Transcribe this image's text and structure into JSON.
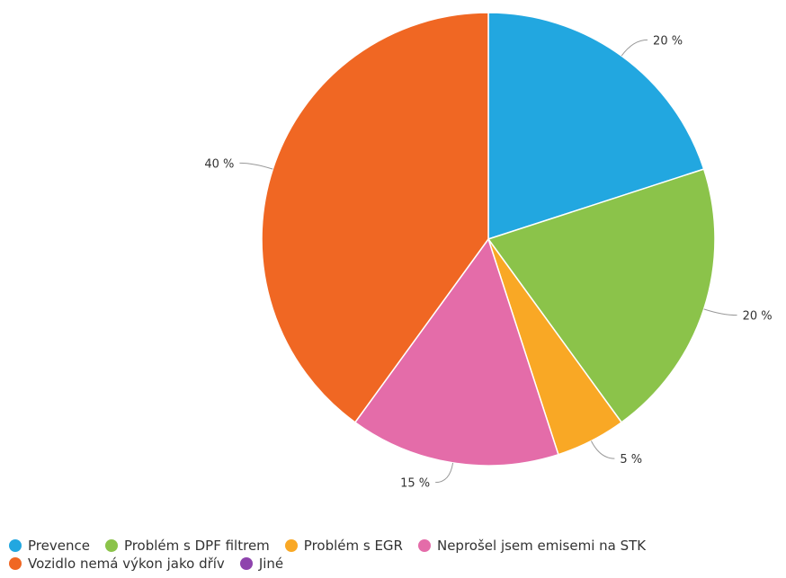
{
  "chart_data": {
    "type": "pie",
    "categories": [
      "Prevence",
      "Problém s DPF filtrem",
      "Problém s EGR",
      "Neprošel jsem emisemi na STK",
      "Vozidlo nemá výkon jako dřív",
      "Jiné"
    ],
    "values": [
      20,
      20,
      5,
      15,
      40,
      0
    ],
    "labels": [
      "20 %",
      "20 %",
      "5 %",
      "15 %",
      "40 %",
      ""
    ],
    "colors": [
      "#22a7e0",
      "#8bc34a",
      "#f9a825",
      "#e46ca9",
      "#f06723",
      "#8e44ad"
    ],
    "legend_position": "bottom",
    "start_angle": "top",
    "direction": "clockwise"
  }
}
